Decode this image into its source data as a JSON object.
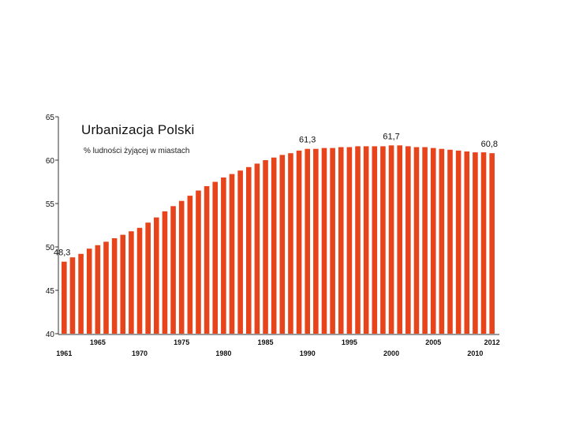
{
  "chart_data": {
    "type": "bar",
    "title": "Urbanizacja Polski",
    "subtitle": "% ludności żyjącej w miastach",
    "xlabel": "",
    "ylabel": "",
    "ylim": [
      40,
      65
    ],
    "yticks": [
      "40",
      "45",
      "50",
      "55",
      "60",
      "65"
    ],
    "grid": false,
    "legend": "none",
    "bar_color": "#e8441c",
    "x": [
      1961,
      1962,
      1963,
      1964,
      1965,
      1966,
      1967,
      1968,
      1969,
      1970,
      1971,
      1972,
      1973,
      1974,
      1975,
      1976,
      1977,
      1978,
      1979,
      1980,
      1981,
      1982,
      1983,
      1984,
      1985,
      1986,
      1987,
      1988,
      1989,
      1990,
      1991,
      1992,
      1993,
      1994,
      1995,
      1996,
      1997,
      1998,
      1999,
      2000,
      2001,
      2002,
      2003,
      2004,
      2005,
      2006,
      2007,
      2008,
      2009,
      2010,
      2011,
      2012
    ],
    "values": [
      48.3,
      48.8,
      49.2,
      49.8,
      50.2,
      50.6,
      51.0,
      51.4,
      51.8,
      52.2,
      52.8,
      53.4,
      54.1,
      54.7,
      55.3,
      55.9,
      56.5,
      57.0,
      57.5,
      58.0,
      58.4,
      58.8,
      59.2,
      59.6,
      60.0,
      60.3,
      60.6,
      60.8,
      61.1,
      61.3,
      61.3,
      61.4,
      61.4,
      61.5,
      61.5,
      61.6,
      61.6,
      61.6,
      61.6,
      61.7,
      61.7,
      61.6,
      61.5,
      61.5,
      61.4,
      61.3,
      61.2,
      61.1,
      61.0,
      60.9,
      60.9,
      60.8
    ],
    "xticks_row1": [
      "1965",
      "1975",
      "1985",
      "1995",
      "2005",
      "2012"
    ],
    "xticks_row2": [
      "1961",
      "1970",
      "1980",
      "1990",
      "2000",
      "2010"
    ],
    "annotations": [
      {
        "x": 1961,
        "label": "48,3"
      },
      {
        "x": 1990,
        "label": "61,3"
      },
      {
        "x": 2000,
        "label": "61,7"
      },
      {
        "x": 2012,
        "label": "60,8"
      }
    ]
  }
}
